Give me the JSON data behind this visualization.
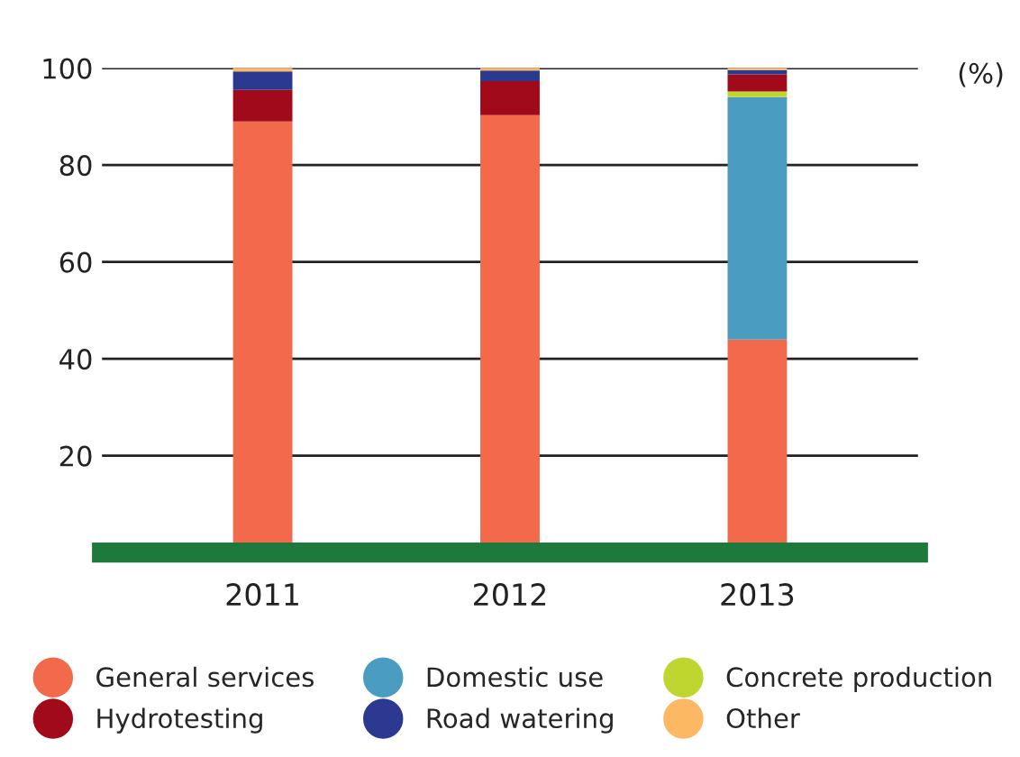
{
  "chart_data": {
    "type": "bar",
    "stacked": true,
    "ylabel": "(%)",
    "categories": [
      "2011",
      "2012",
      "2013"
    ],
    "series": [
      {
        "name": "General services",
        "color": "#f26a4b",
        "values": [
          89,
          90.3,
          44
        ]
      },
      {
        "name": "Domestic use",
        "color": "#4a9cc0",
        "values": [
          0,
          0,
          50
        ]
      },
      {
        "name": "Concrete production",
        "color": "#bfd630",
        "values": [
          0,
          0,
          1.2
        ]
      },
      {
        "name": "Hydrotesting",
        "color": "#a10a1a",
        "values": [
          6.5,
          7,
          3.5
        ]
      },
      {
        "name": "Road watering",
        "color": "#2b3990",
        "values": [
          3.8,
          2.2,
          0.9
        ]
      },
      {
        "name": "Other",
        "color": "#fdb863",
        "values": [
          0.7,
          0.5,
          0.4
        ]
      }
    ],
    "ylim": [
      0,
      100
    ],
    "yticks": [
      {
        "value": 0,
        "label": null
      },
      20,
      40,
      60,
      80,
      100
    ],
    "grid": "y",
    "legend": "bottom"
  }
}
